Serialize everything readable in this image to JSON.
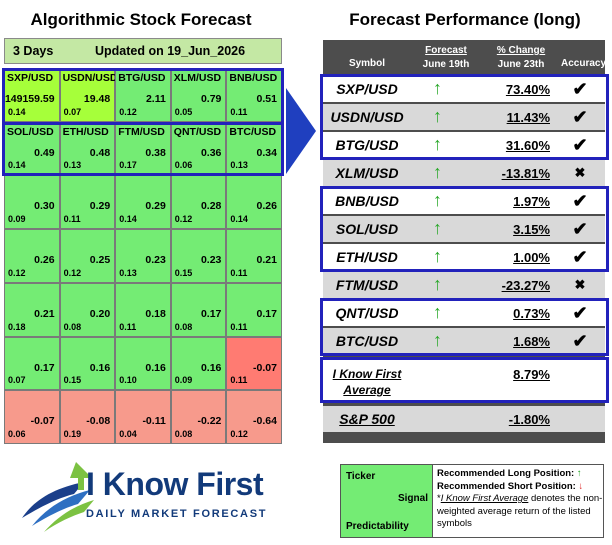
{
  "left_title": "Algorithmic Stock Forecast",
  "right_title": "Forecast Performance (long)",
  "heatmap": {
    "period": "3 Days",
    "updated": "Updated on 19_Jun_2026",
    "rows": [
      [
        {
          "symbol": "SXP/USD",
          "signal": "149159.59",
          "predictability": "0.14"
        },
        {
          "symbol": "USDN/USD",
          "signal": "19.48",
          "predictability": "0.07"
        },
        {
          "symbol": "BTG/USD",
          "signal": "2.11",
          "predictability": "0.12"
        },
        {
          "symbol": "XLM/USD",
          "signal": "0.79",
          "predictability": "0.05"
        },
        {
          "symbol": "BNB/USD",
          "signal": "0.51",
          "predictability": "0.11"
        }
      ],
      [
        {
          "symbol": "SOL/USD",
          "signal": "0.49",
          "predictability": "0.14"
        },
        {
          "symbol": "ETH/USD",
          "signal": "0.48",
          "predictability": "0.13"
        },
        {
          "symbol": "FTM/USD",
          "signal": "0.38",
          "predictability": "0.17"
        },
        {
          "symbol": "QNT/USD",
          "signal": "0.36",
          "predictability": "0.06"
        },
        {
          "symbol": "BTC/USD",
          "signal": "0.34",
          "predictability": "0.13"
        }
      ],
      [
        {
          "symbol": "",
          "signal": "0.30",
          "predictability": "0.09"
        },
        {
          "symbol": "",
          "signal": "0.29",
          "predictability": "0.11"
        },
        {
          "symbol": "",
          "signal": "0.29",
          "predictability": "0.14"
        },
        {
          "symbol": "",
          "signal": "0.28",
          "predictability": "0.12"
        },
        {
          "symbol": "",
          "signal": "0.26",
          "predictability": "0.14"
        }
      ],
      [
        {
          "symbol": "",
          "signal": "0.26",
          "predictability": "0.12"
        },
        {
          "symbol": "",
          "signal": "0.25",
          "predictability": "0.12"
        },
        {
          "symbol": "",
          "signal": "0.23",
          "predictability": "0.13"
        },
        {
          "symbol": "",
          "signal": "0.23",
          "predictability": "0.15"
        },
        {
          "symbol": "",
          "signal": "0.21",
          "predictability": "0.11"
        }
      ],
      [
        {
          "symbol": "",
          "signal": "0.21",
          "predictability": "0.18"
        },
        {
          "symbol": "",
          "signal": "0.20",
          "predictability": "0.08"
        },
        {
          "symbol": "",
          "signal": "0.18",
          "predictability": "0.11"
        },
        {
          "symbol": "",
          "signal": "0.17",
          "predictability": "0.08"
        },
        {
          "symbol": "",
          "signal": "0.17",
          "predictability": "0.11"
        }
      ],
      [
        {
          "symbol": "",
          "signal": "0.17",
          "predictability": "0.07"
        },
        {
          "symbol": "",
          "signal": "0.16",
          "predictability": "0.15"
        },
        {
          "symbol": "",
          "signal": "0.16",
          "predictability": "0.10"
        },
        {
          "symbol": "",
          "signal": "0.16",
          "predictability": "0.09"
        },
        {
          "symbol": "",
          "signal": "-0.07",
          "predictability": "0.11"
        }
      ],
      [
        {
          "symbol": "",
          "signal": "-0.07",
          "predictability": "0.06"
        },
        {
          "symbol": "",
          "signal": "-0.08",
          "predictability": "0.19"
        },
        {
          "symbol": "",
          "signal": "-0.11",
          "predictability": "0.04"
        },
        {
          "symbol": "",
          "signal": "-0.22",
          "predictability": "0.08"
        },
        {
          "symbol": "",
          "signal": "-0.64",
          "predictability": "0.12"
        }
      ]
    ]
  },
  "performance": {
    "headers": {
      "symbol": "Symbol",
      "forecast_label": "Forecast",
      "forecast_date": "June 19th",
      "change_label": "% Change",
      "change_date": "June 23th",
      "accuracy": "Accuracy"
    },
    "rows": [
      {
        "symbol": "SXP/USD",
        "direction": "↑",
        "change": "73.40%",
        "accuracy": "✔"
      },
      {
        "symbol": "USDN/USD",
        "direction": "↑",
        "change": "11.43%",
        "accuracy": "✔"
      },
      {
        "symbol": "BTG/USD",
        "direction": "↑",
        "change": "31.60%",
        "accuracy": "✔"
      },
      {
        "symbol": "XLM/USD",
        "direction": "↑",
        "change": "-13.81%",
        "accuracy": "✖"
      },
      {
        "symbol": "BNB/USD",
        "direction": "↑",
        "change": "1.97%",
        "accuracy": "✔"
      },
      {
        "symbol": "SOL/USD",
        "direction": "↑",
        "change": "3.15%",
        "accuracy": "✔"
      },
      {
        "symbol": "ETH/USD",
        "direction": "↑",
        "change": "1.00%",
        "accuracy": "✔"
      },
      {
        "symbol": "FTM/USD",
        "direction": "↑",
        "change": "-23.27%",
        "accuracy": "✖"
      },
      {
        "symbol": "QNT/USD",
        "direction": "↑",
        "change": "0.73%",
        "accuracy": "✔"
      },
      {
        "symbol": "BTC/USD",
        "direction": "↑",
        "change": "1.68%",
        "accuracy": "✔"
      }
    ],
    "average": {
      "line1": "I Know First",
      "line2": "Average",
      "change": "8.79%"
    },
    "sp500": {
      "label": "S&P 500",
      "change": "-1.80%"
    }
  },
  "logo": {
    "brand": "I Know First",
    "tagline": "DAILY MARKET FORECAST"
  },
  "legend": {
    "ticker": "Ticker",
    "signal": "Signal",
    "predictability": "Predictability",
    "long": "Recommended Long Position:",
    "long_arrow": "↑",
    "short": "Recommended Short Position:",
    "short_arrow": "↓",
    "avg_term": "I Know First Average",
    "avg_desc": " denotes the non-weighted average return of the listed symbols"
  },
  "colors": {
    "green_strong": "#a6ff3a",
    "green": "#74ec74",
    "red_light": "#f79a8c",
    "red": "#ff7b72",
    "highlight_border": "#2222bb",
    "table_bg": "#4d4d4d"
  }
}
